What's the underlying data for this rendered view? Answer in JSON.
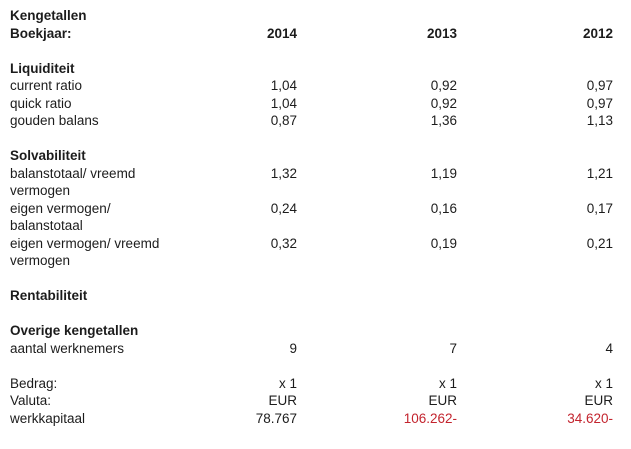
{
  "colors": {
    "text": "#1c1c1c",
    "negative": "#c3242e"
  },
  "header": {
    "title": "Kengetallen",
    "year_row_label": "Boekjaar:",
    "years": [
      "2014",
      "2013",
      "2012"
    ]
  },
  "sections": [
    {
      "heading": "Liquiditeit",
      "rows": [
        {
          "label": "current ratio",
          "values": [
            "1,04",
            "0,92",
            "0,97"
          ]
        },
        {
          "label": "quick ratio",
          "values": [
            "1,04",
            "0,92",
            "0,97"
          ]
        },
        {
          "label": "gouden balans",
          "values": [
            "0,87",
            "1,36",
            "1,13"
          ]
        }
      ]
    },
    {
      "heading": "Solvabiliteit",
      "rows": [
        {
          "label": "balanstotaal/ vreemd\nvermogen",
          "values": [
            "1,32",
            "1,19",
            "1,21"
          ]
        },
        {
          "label": "eigen vermogen/\nbalanstotaal",
          "values": [
            "0,24",
            "0,16",
            "0,17"
          ]
        },
        {
          "label": "eigen vermogen/ vreemd\nvermogen",
          "values": [
            "0,32",
            "0,19",
            "0,21"
          ]
        }
      ]
    },
    {
      "heading": "Rentabiliteit",
      "rows": []
    },
    {
      "heading": "Overige kengetallen",
      "rows": [
        {
          "label": "aantal werknemers",
          "values": [
            "9",
            "7",
            "4"
          ]
        }
      ]
    }
  ],
  "footer": {
    "rows": [
      {
        "label": "Bedrag:",
        "values": [
          "x 1",
          "x 1",
          "x 1"
        ]
      },
      {
        "label": "Valuta:",
        "values": [
          "EUR",
          "EUR",
          "EUR"
        ]
      },
      {
        "label": "werkkapitaal",
        "values": [
          "78.767",
          "106.262-",
          "34.620-"
        ],
        "negative": [
          false,
          true,
          true
        ]
      }
    ]
  }
}
